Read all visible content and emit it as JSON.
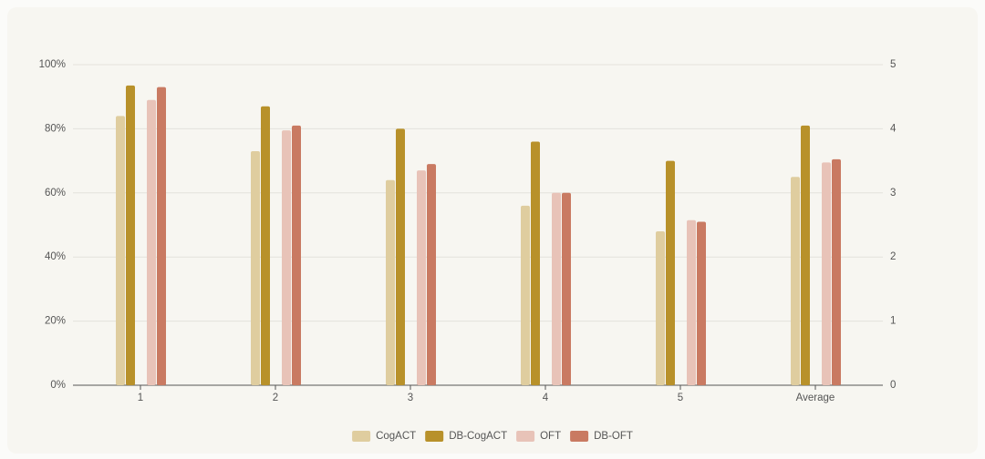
{
  "chart_data": {
    "type": "bar",
    "categories": [
      "1",
      "2",
      "3",
      "4",
      "5",
      "Average"
    ],
    "series": [
      {
        "name": "CogACT",
        "color": "#dfcd9f",
        "values": [
          84,
          73,
          64,
          56,
          48,
          65
        ]
      },
      {
        "name": "DB-CogACT",
        "color": "#b8912a",
        "values": [
          93.5,
          87,
          80,
          76,
          70,
          81
        ]
      },
      {
        "name": "OFT",
        "color": "#e8c3b8",
        "values": [
          89,
          79.5,
          67,
          60,
          51.5,
          69.5
        ]
      },
      {
        "name": "DB-OFT",
        "color": "#c97a62",
        "values": [
          93,
          81,
          69,
          60,
          51,
          70.5
        ]
      }
    ],
    "ylim": [
      0,
      100
    ],
    "yticks": [
      {
        "value": 0,
        "label": "0%"
      },
      {
        "value": 20,
        "label": "20%"
      },
      {
        "value": 40,
        "label": "40%"
      },
      {
        "value": 60,
        "label": "60%"
      },
      {
        "value": 80,
        "label": "80%"
      },
      {
        "value": 100,
        "label": "100%"
      }
    ],
    "y2lim": [
      0,
      5
    ],
    "y2ticks": [
      0,
      1,
      2,
      3,
      4,
      5
    ],
    "grid": true,
    "legend": "bottom"
  }
}
